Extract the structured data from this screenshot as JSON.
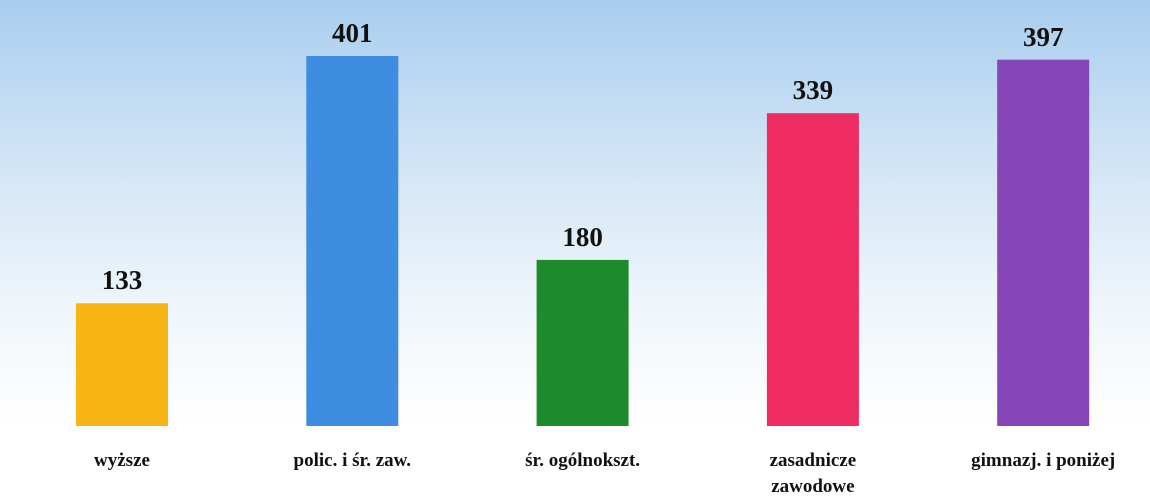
{
  "chart_data": {
    "type": "bar",
    "categories": [
      "wyższe",
      "polic. i śr. zaw.",
      "śr. ogólnokszt.",
      "zasadnicze\nzawodowe",
      "gimnazj. i poniżej"
    ],
    "values": [
      133,
      401,
      180,
      339,
      397
    ],
    "colors": [
      "#f8b516",
      "#3f8de0",
      "#1d8a2b",
      "#ee2c62",
      "#8746b7"
    ]
  }
}
